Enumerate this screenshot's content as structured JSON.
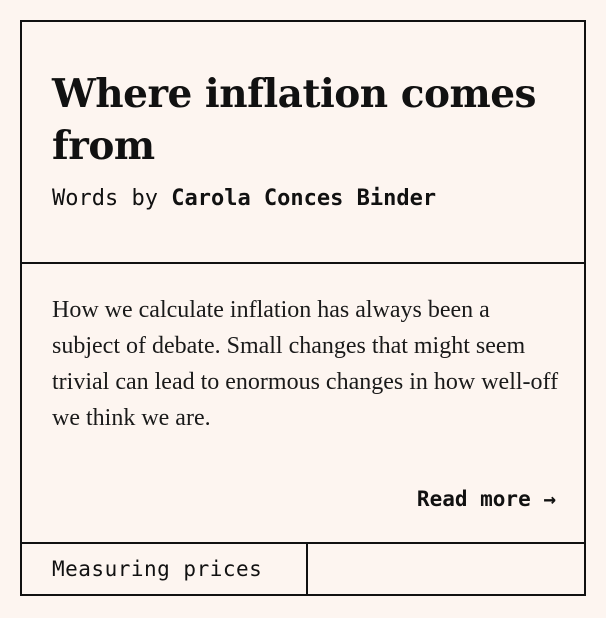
{
  "article": {
    "title": "Where inflation comes from",
    "byline_prefix": "Words by ",
    "author": "Carola Conces Binder",
    "summary": "How we calculate inflation has always been a subject of debate. Small changes that might seem trivial can lead to enormous changes in how well-off we think we are.",
    "read_more_label": "Read more →",
    "tag": "Measuring prices"
  },
  "colors": {
    "background": "#fdf5f0",
    "border": "#111111",
    "text": "#111111"
  }
}
